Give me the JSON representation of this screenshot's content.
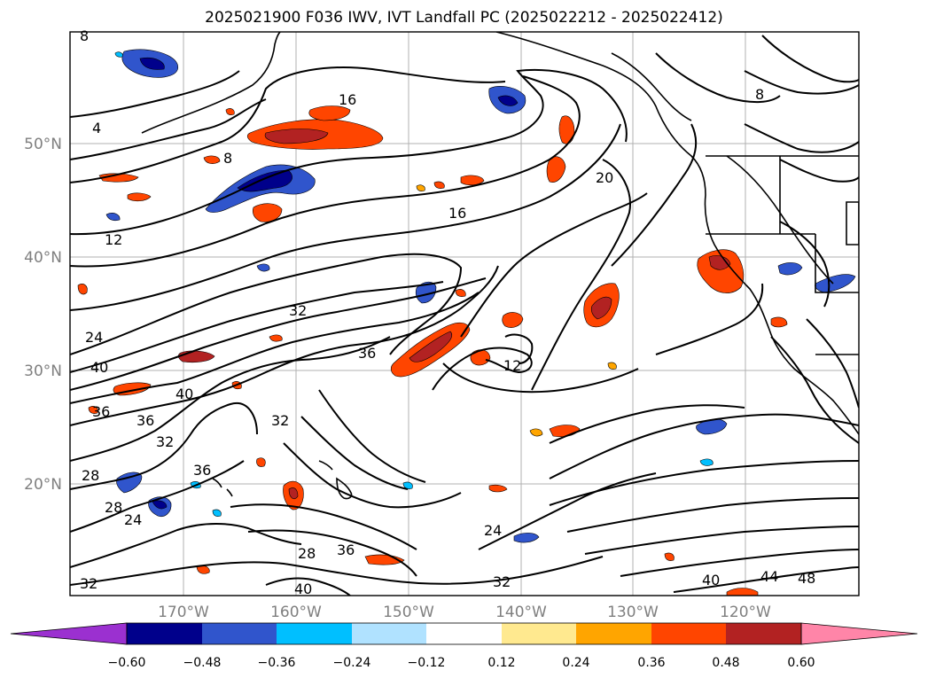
{
  "title": "2025021900 F036 IWV, IVT Landfall PC (2025022212 - 2025022412)",
  "lat_labels": [
    "50°N",
    "40°N",
    "30°N",
    "20°N"
  ],
  "lon_labels": [
    "170°W",
    "160°W",
    "150°W",
    "140°W",
    "130°W",
    "120°W"
  ],
  "contour_labels": [
    "4",
    "8",
    "8",
    "8",
    "12",
    "12",
    "16",
    "16",
    "20",
    "24",
    "24",
    "24",
    "28",
    "28",
    "28",
    "32",
    "32",
    "32",
    "32",
    "32",
    "36",
    "36",
    "36",
    "36",
    "36",
    "40",
    "40",
    "40",
    "40",
    "44",
    "48"
  ],
  "colorbar": {
    "ticks": [
      "−0.60",
      "−0.48",
      "−0.36",
      "−0.24",
      "−0.12",
      "0.12",
      "0.24",
      "0.36",
      "0.48",
      "0.60"
    ],
    "colors": [
      "#9b30d0",
      "#00008b",
      "#3055cc",
      "#00bfff",
      "#b0e2ff",
      "#ffffff",
      "#ffe98f",
      "#ffa500",
      "#ff4500",
      "#b22222",
      "#ff85a8"
    ]
  },
  "colors": {
    "coast": "#000000",
    "grid": "#b0b0b0",
    "contour": "#000000"
  }
}
